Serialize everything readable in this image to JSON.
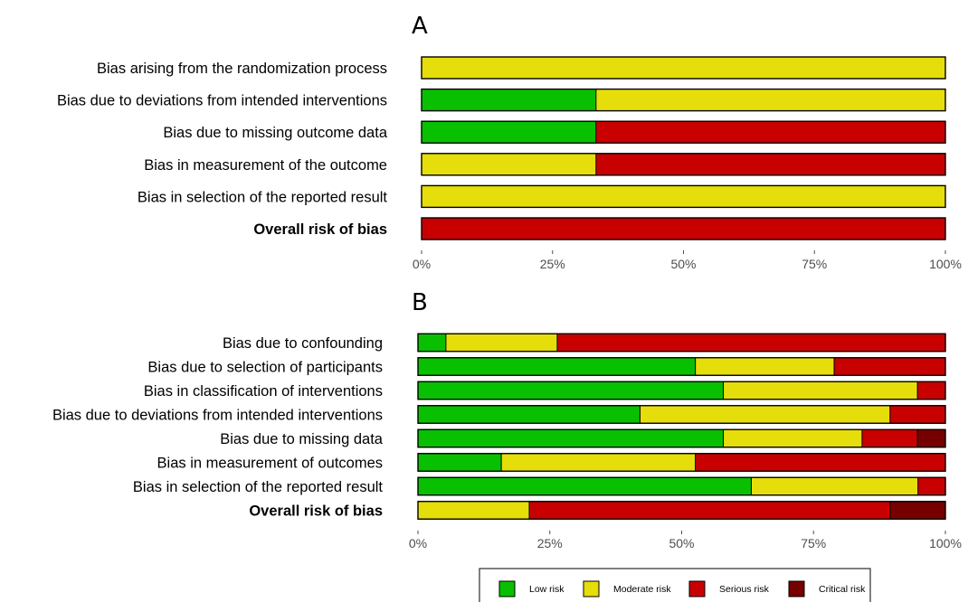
{
  "colors": {
    "Low risk": "#09c000",
    "Moderate risk": "#e6de0a",
    "Serious risk": "#c90000",
    "Critical risk": "#760000"
  },
  "legend": [
    "Low risk",
    "Moderate risk",
    "Serious risk",
    "Critical risk"
  ],
  "chart_data": [
    {
      "type": "bar",
      "orientation": "horizontal",
      "stacked": true,
      "panel_label": "A",
      "xlim": [
        0,
        100
      ],
      "xticks": [
        "0%",
        "25%",
        "50%",
        "75%",
        "100%"
      ],
      "categories": [
        "Bias arising from the randomization process",
        "Bias due to deviations from intended interventions",
        "Bias due to missing outcome data",
        "Bias in measurement of the outcome",
        "Bias in selection of the reported result",
        "Overall risk of bias"
      ],
      "bold_categories": [
        "Overall risk of bias"
      ],
      "series": [
        {
          "name": "Low risk",
          "values": [
            0,
            33.3,
            33.3,
            0,
            0,
            0
          ]
        },
        {
          "name": "Moderate risk",
          "values": [
            100,
            66.7,
            0,
            33.3,
            100,
            0
          ]
        },
        {
          "name": "Serious risk",
          "values": [
            0,
            0,
            66.7,
            66.7,
            0,
            100
          ]
        },
        {
          "name": "Critical risk",
          "values": [
            0,
            0,
            0,
            0,
            0,
            0
          ]
        }
      ]
    },
    {
      "type": "bar",
      "orientation": "horizontal",
      "stacked": true,
      "panel_label": "B",
      "xlim": [
        0,
        100
      ],
      "xticks": [
        "0%",
        "25%",
        "50%",
        "75%",
        "100%"
      ],
      "categories": [
        "Bias due to confounding",
        "Bias due to selection of participants",
        "Bias in classification of interventions",
        "Bias due to deviations from intended interventions",
        "Bias due to missing data",
        "Bias in measurement of outcomes",
        "Bias in selection of the reported result",
        "Overall risk of bias"
      ],
      "bold_categories": [
        "Overall risk of bias"
      ],
      "series": [
        {
          "name": "Low risk",
          "values": [
            5.3,
            52.6,
            57.9,
            42.1,
            57.9,
            15.8,
            63.2,
            0
          ]
        },
        {
          "name": "Moderate risk",
          "values": [
            21.1,
            26.3,
            36.8,
            47.4,
            26.3,
            36.8,
            31.6,
            21.1
          ]
        },
        {
          "name": "Serious risk",
          "values": [
            73.7,
            21.1,
            5.3,
            10.5,
            10.5,
            47.4,
            5.3,
            68.4
          ]
        },
        {
          "name": "Critical risk",
          "values": [
            0,
            0,
            0,
            0,
            5.3,
            0,
            0,
            10.5
          ]
        }
      ]
    }
  ]
}
